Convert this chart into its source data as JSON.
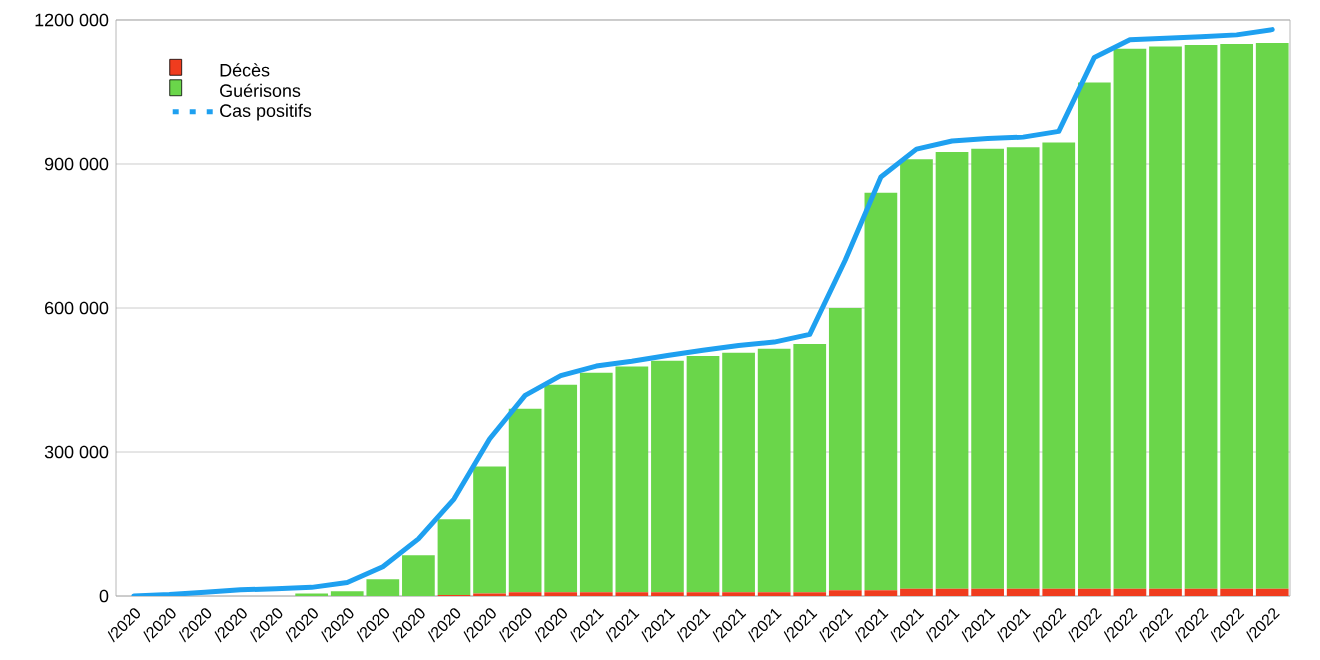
{
  "chart_data": {
    "type": "bar",
    "stacked": true,
    "grid": "y",
    "legend": "top left",
    "categories": [
      "/2020",
      "/2020",
      "/2020",
      "/2020",
      "/2020",
      "/2020",
      "/2020",
      "/2020",
      "/2020",
      "/2020",
      "/2020",
      "/2020",
      "/2020",
      "/2021",
      "/2021",
      "/2021",
      "/2021",
      "/2021",
      "/2021",
      "/2021",
      "/2021",
      "/2021",
      "/2021",
      "/2021",
      "/2021",
      "/2021",
      "/2022",
      "/2022",
      "/2022",
      "/2022",
      "/2022",
      "/2022",
      "/2022"
    ],
    "ylim": [
      0,
      1200000
    ],
    "yticks": [
      {
        "value": 0,
        "label": "0"
      },
      {
        "value": 300000,
        "label": "300 000"
      },
      {
        "value": 600000,
        "label": "600 000"
      },
      {
        "value": 900000,
        "label": "900 000"
      },
      {
        "value": 1200000,
        "label": "1200 000"
      }
    ],
    "series": [
      {
        "name": "Décès",
        "color": "#f03c1e",
        "values": [
          0,
          0,
          0,
          0,
          0,
          0,
          0,
          0,
          0,
          2000,
          5000,
          8000,
          8000,
          8000,
          8000,
          8000,
          8000,
          8000,
          8000,
          8000,
          12000,
          12000,
          15000,
          15000,
          15000,
          15000,
          15000,
          15000,
          15000,
          15000,
          15000,
          15000,
          15000
        ]
      },
      {
        "name": "Guérisons",
        "color": "#6ad64a",
        "values": [
          0,
          0,
          0,
          0,
          0,
          5000,
          10000,
          35000,
          85000,
          158000,
          265000,
          382000,
          432000,
          457000,
          470000,
          482000,
          492000,
          499000,
          507000,
          517000,
          588000,
          828000,
          895000,
          910000,
          917000,
          920000,
          930000,
          1055000,
          1125000,
          1130000,
          1133000,
          1135000,
          1137000
        ]
      },
      {
        "name": "Cas positifs",
        "type": "line",
        "color": "#1ea0f0",
        "values": [
          0,
          3000,
          8000,
          13000,
          15000,
          18000,
          28000,
          61000,
          119000,
          202000,
          327000,
          418000,
          459000,
          479000,
          489000,
          501000,
          512000,
          522000,
          529000,
          545000,
          700000,
          873000,
          931000,
          948000,
          953000,
          956000,
          968000,
          1122000,
          1159000,
          1162000,
          1165000,
          1169000,
          1180000
        ]
      }
    ]
  }
}
